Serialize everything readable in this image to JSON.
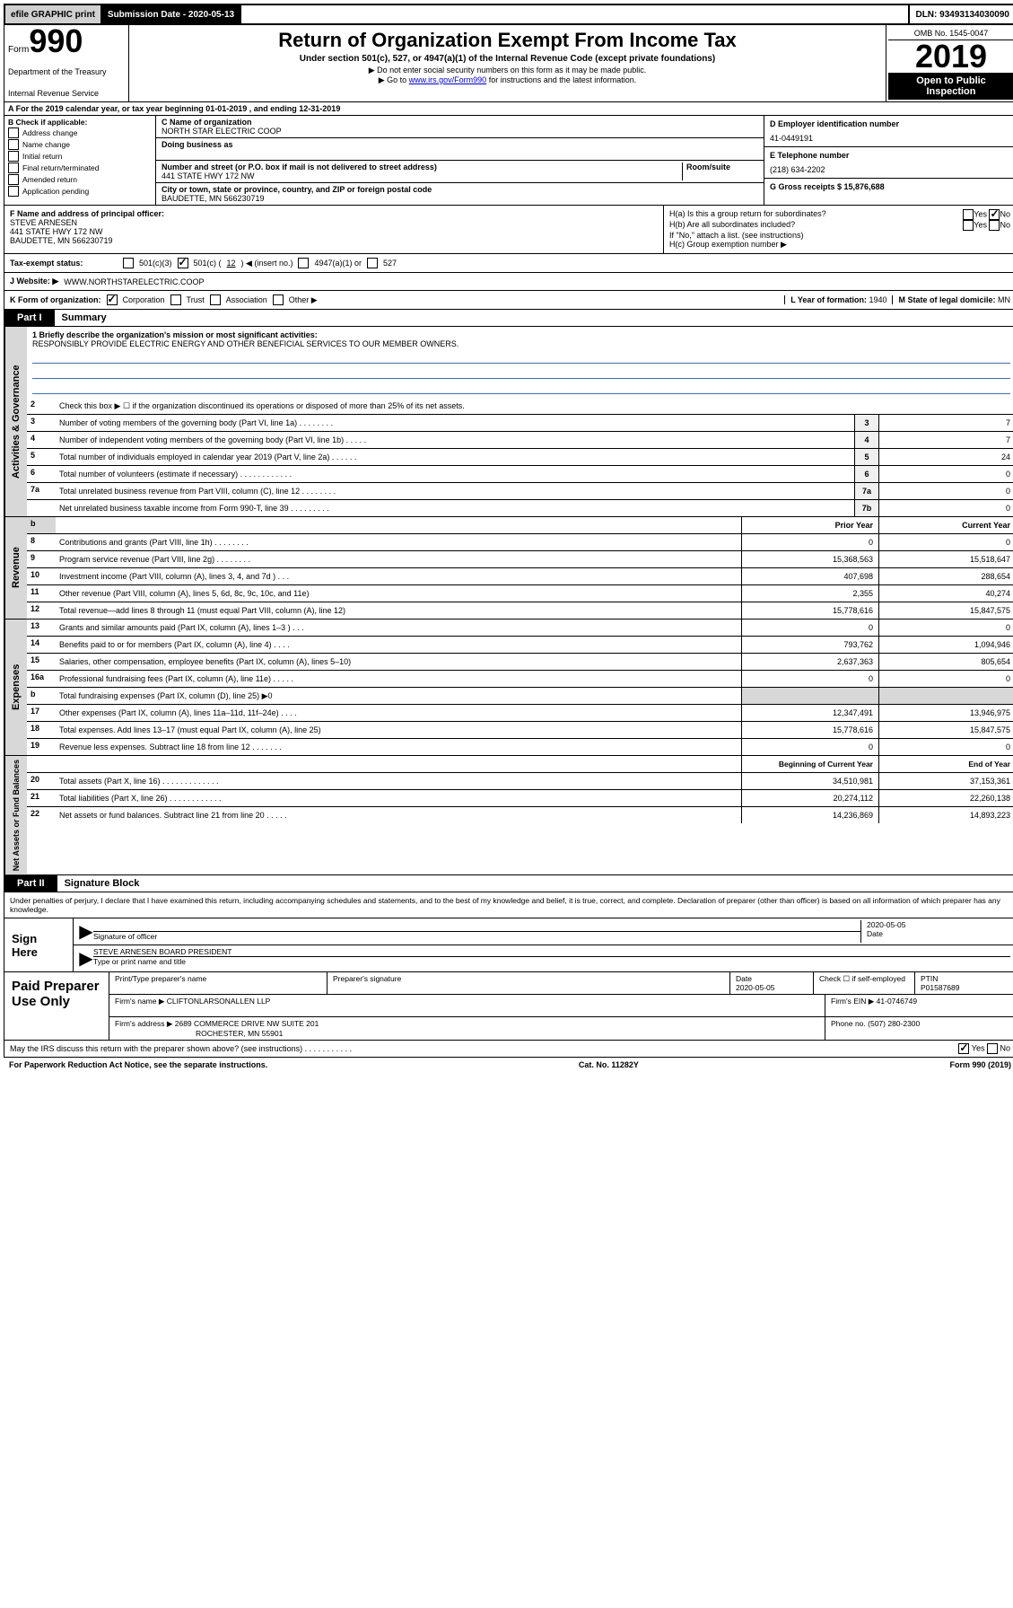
{
  "topbar": {
    "efile": "efile GRAPHIC print",
    "submission_label": "Submission Date - 2020-05-13",
    "dln": "DLN: 93493134030090"
  },
  "header": {
    "form_label": "Form",
    "form_num": "990",
    "dept1": "Department of the Treasury",
    "dept2": "Internal Revenue Service",
    "title": "Return of Organization Exempt From Income Tax",
    "subtitle": "Under section 501(c), 527, or 4947(a)(1) of the Internal Revenue Code (except private foundations)",
    "inst1": "▶ Do not enter social security numbers on this form as it may be made public.",
    "inst2_pre": "▶ Go to ",
    "inst2_link": "www.irs.gov/Form990",
    "inst2_post": " for instructions and the latest information.",
    "omb": "OMB No. 1545-0047",
    "year": "2019",
    "badge1": "Open to Public",
    "badge2": "Inspection"
  },
  "section_a": "A For the 2019 calendar year, or tax year beginning 01-01-2019    , and ending 12-31-2019",
  "check_b": {
    "label": "B Check if applicable:",
    "opts": [
      "Address change",
      "Name change",
      "Initial return",
      "Final return/terminated",
      "Amended return",
      "Application pending"
    ]
  },
  "col_c": {
    "name_label": "C Name of organization",
    "name": "NORTH STAR ELECTRIC COOP",
    "dba_label": "Doing business as",
    "addr_label": "Number and street (or P.O. box if mail is not delivered to street address)",
    "room_label": "Room/suite",
    "addr": "441 STATE HWY 172 NW",
    "city_label": "City or town, state or province, country, and ZIP or foreign postal code",
    "city": "BAUDETTE, MN  566230719"
  },
  "col_right": {
    "d_label": "D Employer identification number",
    "ein": "41-0449191",
    "e_label": "E Telephone number",
    "phone": "(218) 634-2202",
    "g_label": "G Gross receipts $ 15,876,688"
  },
  "row_f": {
    "f_label": "F  Name and address of principal officer:",
    "name": "STEVE ARNESEN",
    "addr1": "441 STATE HWY 172 NW",
    "addr2": "BAUDETTE, MN  566230719"
  },
  "row_h": {
    "ha": "H(a)  Is this a group return for subordinates?",
    "hb": "H(b)  Are all subordinates included?",
    "hb_note": "If \"No,\" attach a list. (see instructions)",
    "hc": "H(c)  Group exemption number ▶",
    "yes": "Yes",
    "no": "No"
  },
  "tax_status": {
    "label": "Tax-exempt status:",
    "opt1": "501(c)(3)",
    "opt2_pre": "501(c) (",
    "opt2_num": "12",
    "opt2_post": ") ◀ (insert no.)",
    "opt3": "4947(a)(1) or",
    "opt4": "527"
  },
  "website": {
    "label": "J   Website: ▶",
    "url": "WWW.NORTHSTARELECTRIC.COOP"
  },
  "kform": {
    "label": "K Form of organization:",
    "corp": "Corporation",
    "trust": "Trust",
    "assoc": "Association",
    "other": "Other ▶",
    "l_label": "L Year of formation: ",
    "l_val": "1940",
    "m_label": "M State of legal domicile: ",
    "m_val": "MN"
  },
  "part1": {
    "tab": "Part I",
    "title": "Summary"
  },
  "gov": {
    "side": "Activities & Governance",
    "l1": "1  Briefly describe the organization's mission or most significant activities:",
    "mission": "RESPONSIBLY PROVIDE ELECTRIC ENERGY AND OTHER BENEFICIAL SERVICES TO OUR MEMBER OWNERS.",
    "l2": "Check this box ▶ ☐  if the organization discontinued its operations or disposed of more than 25% of its net assets.",
    "rows": [
      {
        "n": "3",
        "t": "Number of voting members of the governing body (Part VI, line 1a)   .   .   .   .   .   .   .   .",
        "b": "3",
        "v": "7"
      },
      {
        "n": "4",
        "t": "Number of independent voting members of the governing body (Part VI, line 1b)   .   .   .   .   .",
        "b": "4",
        "v": "7"
      },
      {
        "n": "5",
        "t": "Total number of individuals employed in calendar year 2019 (Part V, line 2a)   .   .   .   .   .   .",
        "b": "5",
        "v": "24"
      },
      {
        "n": "6",
        "t": "Total number of volunteers (estimate if necessary)   .   .   .   .   .   .   .   .   .   .   .   .",
        "b": "6",
        "v": "0"
      },
      {
        "n": "7a",
        "t": "Total unrelated business revenue from Part VIII, column (C), line 12   .   .   .   .   .   .   .   .",
        "b": "7a",
        "v": "0"
      },
      {
        "n": "",
        "t": "Net unrelated business taxable income from Form 990-T, line 39   .   .   .   .   .   .   .   .   .",
        "b": "7b",
        "v": "0"
      }
    ]
  },
  "rev": {
    "side": "Revenue",
    "h1": "Prior Year",
    "h2": "Current Year",
    "rows": [
      {
        "n": "8",
        "t": "Contributions and grants (Part VIII, line 1h)   .   .   .   .   .   .   .   .",
        "p": "0",
        "c": "0"
      },
      {
        "n": "9",
        "t": "Program service revenue (Part VIII, line 2g)   .   .   .   .   .   .   .   .",
        "p": "15,368,563",
        "c": "15,518,647"
      },
      {
        "n": "10",
        "t": "Investment income (Part VIII, column (A), lines 3, 4, and 7d )   .   .   .",
        "p": "407,698",
        "c": "288,654"
      },
      {
        "n": "11",
        "t": "Other revenue (Part VIII, column (A), lines 5, 6d, 8c, 9c, 10c, and 11e)",
        "p": "2,355",
        "c": "40,274"
      },
      {
        "n": "12",
        "t": "Total revenue—add lines 8 through 11 (must equal Part VIII, column (A), line 12)",
        "p": "15,778,616",
        "c": "15,847,575"
      }
    ]
  },
  "exp": {
    "side": "Expenses",
    "rows": [
      {
        "n": "13",
        "t": "Grants and similar amounts paid (Part IX, column (A), lines 1–3 )   .   .   .",
        "p": "0",
        "c": "0"
      },
      {
        "n": "14",
        "t": "Benefits paid to or for members (Part IX, column (A), line 4)   .   .   .   .",
        "p": "793,762",
        "c": "1,094,946"
      },
      {
        "n": "15",
        "t": "Salaries, other compensation, employee benefits (Part IX, column (A), lines 5–10)",
        "p": "2,637,363",
        "c": "805,654"
      },
      {
        "n": "16a",
        "t": "Professional fundraising fees (Part IX, column (A), line 11e)   .   .   .   .   .",
        "p": "0",
        "c": "0"
      },
      {
        "n": "b",
        "t": "Total fundraising expenses (Part IX, column (D), line 25) ▶0",
        "p": "",
        "c": ""
      },
      {
        "n": "17",
        "t": "Other expenses (Part IX, column (A), lines 11a–11d, 11f–24e)   .   .   .   .",
        "p": "12,347,491",
        "c": "13,946,975"
      },
      {
        "n": "18",
        "t": "Total expenses. Add lines 13–17 (must equal Part IX, column (A), line 25)",
        "p": "15,778,616",
        "c": "15,847,575"
      },
      {
        "n": "19",
        "t": "Revenue less expenses. Subtract line 18 from line 12   .   .   .   .   .   .   .",
        "p": "0",
        "c": "0"
      }
    ]
  },
  "net": {
    "side": "Net Assets or Fund Balances",
    "h1": "Beginning of Current Year",
    "h2": "End of Year",
    "rows": [
      {
        "n": "20",
        "t": "Total assets (Part X, line 16)   .   .   .   .   .   .   .   .   .   .   .   .   .",
        "p": "34,510,981",
        "c": "37,153,361"
      },
      {
        "n": "21",
        "t": "Total liabilities (Part X, line 26)   .   .   .   .   .   .   .   .   .   .   .   .",
        "p": "20,274,112",
        "c": "22,260,138"
      },
      {
        "n": "22",
        "t": "Net assets or fund balances. Subtract line 21 from line 20   .   .   .   .   .",
        "p": "14,236,869",
        "c": "14,893,223"
      }
    ]
  },
  "part2": {
    "tab": "Part II",
    "title": "Signature Block",
    "decl": "Under penalties of perjury, I declare that I have examined this return, including accompanying schedules and statements, and to the best of my knowledge and belief, it is true, correct, and complete. Declaration of preparer (other than officer) is based on all information of which preparer has any knowledge."
  },
  "sign": {
    "label": "Sign Here",
    "sig_label": "Signature of officer",
    "date": "2020-05-05",
    "date_label": "Date",
    "name": "STEVE ARNESEN  BOARD PRESIDENT",
    "name_label": "Type or print name and title"
  },
  "paid": {
    "label": "Paid Preparer Use Only",
    "h1": "Print/Type preparer's name",
    "h2": "Preparer's signature",
    "h3": "Date",
    "h3v": "2020-05-05",
    "h4": "Check ☐ if self-employed",
    "h5": "PTIN",
    "ptin": "P01587689",
    "firm_name_l": "Firm's name    ▶",
    "firm_name": "CLIFTONLARSONALLEN LLP",
    "firm_ein_l": "Firm's EIN ▶",
    "firm_ein": "41-0746749",
    "firm_addr_l": "Firm's address ▶",
    "firm_addr1": "2689 COMMERCE DRIVE NW SUITE 201",
    "firm_addr2": "ROCHESTER, MN  55901",
    "phone_l": "Phone no.",
    "phone": "(507) 280-2300"
  },
  "bottom": {
    "q": "May the IRS discuss this return with the preparer shown above? (see instructions)   .   .   .   .   .   .   .   .   .   .   .",
    "yes": "Yes",
    "no": "No"
  },
  "footer": {
    "left": "For Paperwork Reduction Act Notice, see the separate instructions.",
    "mid": "Cat. No. 11282Y",
    "right": "Form 990 (2019)"
  }
}
